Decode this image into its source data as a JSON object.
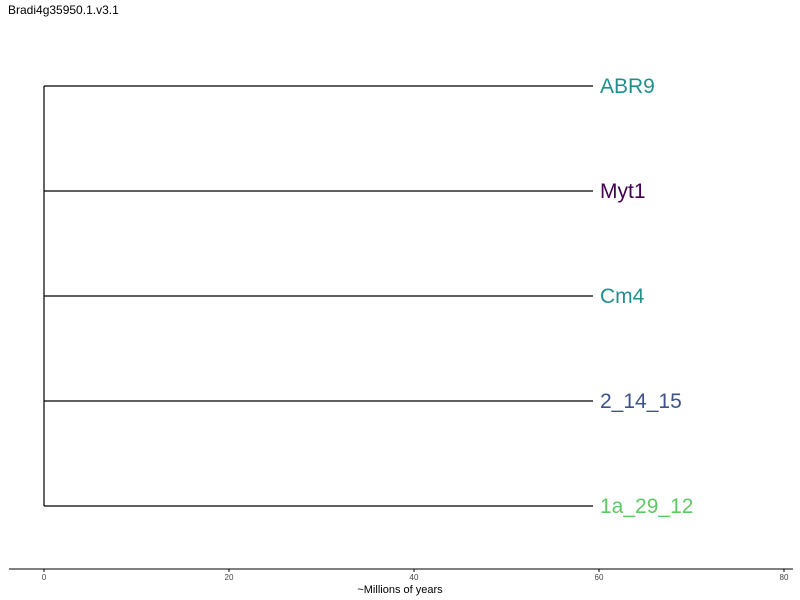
{
  "title": "Bradi4g35950.1.v3.1",
  "chart_data": {
    "type": "dendrogram",
    "xlabel": "~Millions of years",
    "xlim": [
      0,
      80
    ],
    "xticks": [
      0,
      20,
      40,
      60,
      80
    ],
    "tips": [
      {
        "name": "ABR9",
        "color": "#21908d"
      },
      {
        "name": "Myt1",
        "color": "#440154"
      },
      {
        "name": "Cm4",
        "color": "#21908d"
      },
      {
        "name": "2_14_15",
        "color": "#3b528b"
      },
      {
        "name": "1a_29_12",
        "color": "#5dc963"
      }
    ],
    "root_x": 0,
    "tip_x": 60
  }
}
